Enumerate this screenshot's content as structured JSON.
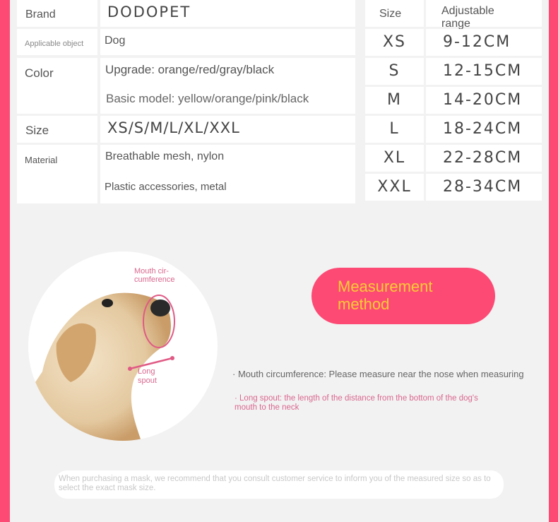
{
  "spec_table": {
    "rows": [
      {
        "label": "Brand",
        "values": [
          "DODOPET"
        ]
      },
      {
        "label": "Applicable object",
        "values": [
          "Dog"
        ]
      },
      {
        "label": "Color",
        "values": [
          "Upgrade: orange/red/gray/black",
          "Basic model: yellow/orange/pink/black"
        ]
      },
      {
        "label": "Size",
        "values": [
          "XS/S/M/L/XL/XXL"
        ]
      },
      {
        "label": "Material",
        "values": [
          "Breathable mesh, nylon",
          "Plastic accessories, metal"
        ]
      }
    ]
  },
  "size_table": {
    "headers": [
      "Size",
      "Adjustable range"
    ],
    "rows": [
      [
        "XS",
        "9-12CM"
      ],
      [
        "S",
        "12-15CM"
      ],
      [
        "M",
        "14-20CM"
      ],
      [
        "L",
        "18-24CM"
      ],
      [
        "XL",
        "22-28CM"
      ],
      [
        "XXL",
        "28-34CM"
      ]
    ]
  },
  "diagram": {
    "mouth_label": "Mouth cir-\ncumference",
    "spout_label": "Long\nspout"
  },
  "measurement": {
    "title": "Measurement\nmethod",
    "mouth_note": "· Mouth circumference: Please measure near the nose when measuring",
    "spout_note": "· Long spout: the length of the distance from the bottom of the dog's mouth to the neck"
  },
  "footer_note": "When purchasing a mask, we recommend that you consult customer service to inform you of the measured size so as to select the exact mask size.",
  "colors": {
    "accent": "#fc4a74",
    "title_text": "#ffcc33",
    "label_pink": "#d9678f"
  }
}
